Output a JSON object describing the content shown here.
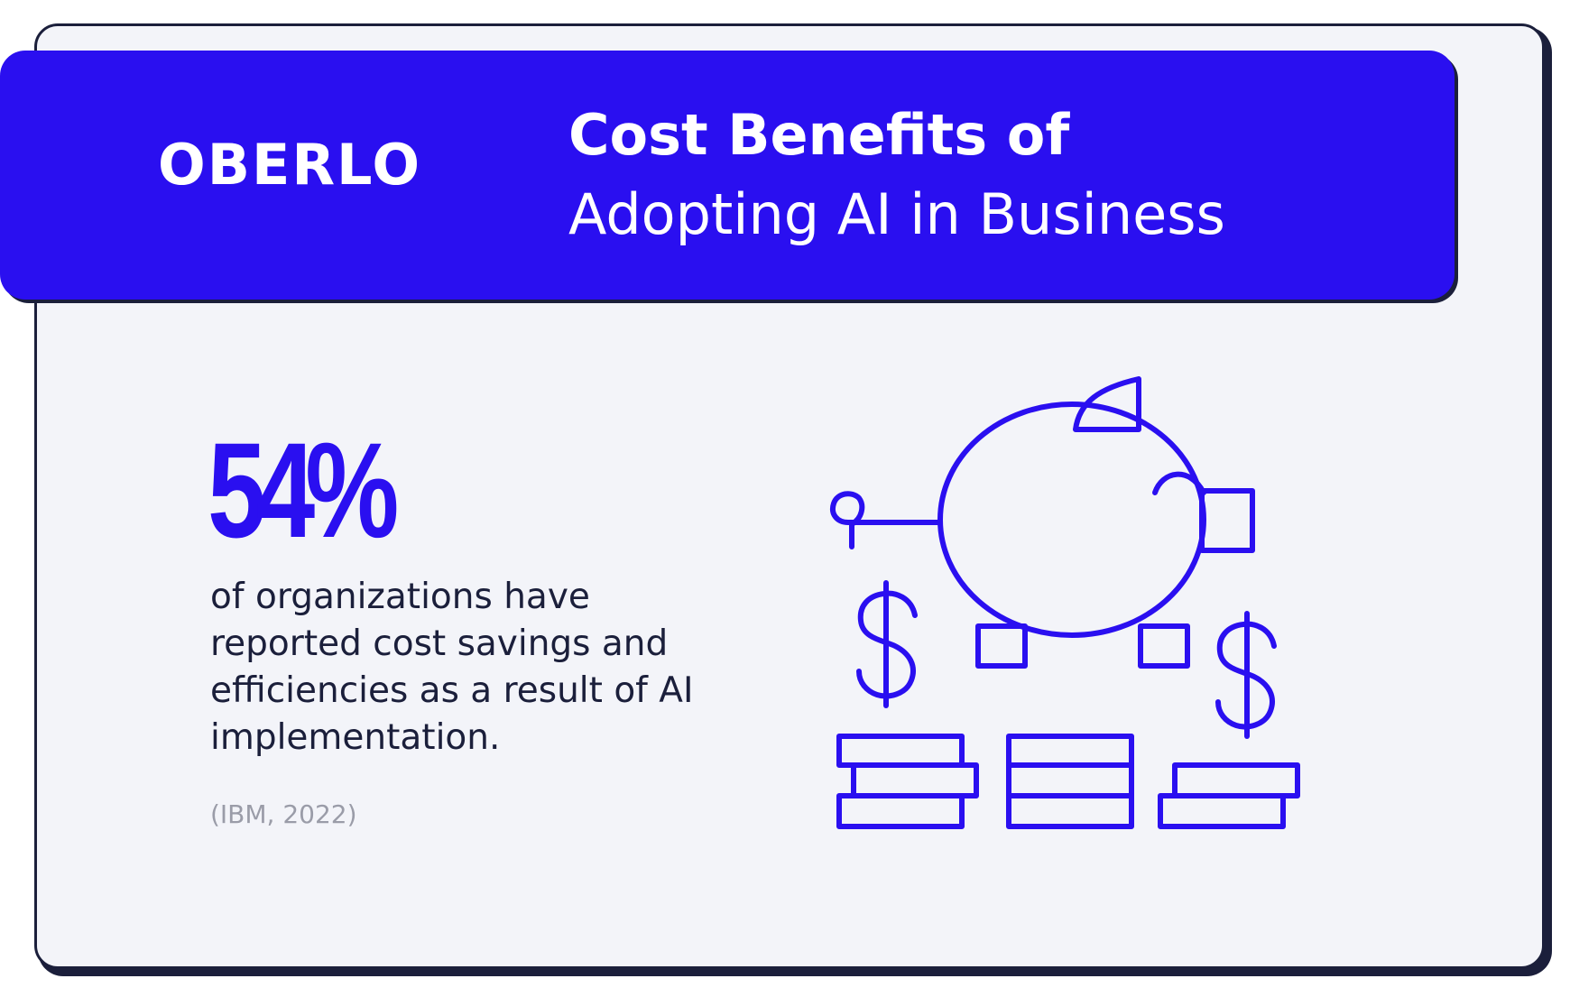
{
  "brand": {
    "logo_text": "OBERLO"
  },
  "header": {
    "title_line1": "Cost Benefits of",
    "title_line2": "Adopting AI in Business"
  },
  "stat": {
    "value": "54%",
    "description": "of organizations have reported cost savings and efficiencies as a result of AI implementation.",
    "source": "(IBM, 2022)"
  },
  "illustration": {
    "icon": "piggy-bank-with-coins-icon"
  },
  "colors": {
    "accent": "#2a0ff0",
    "background": "#f3f4f9",
    "outline": "#1b1f3b",
    "source_text": "#9a9ca8"
  }
}
